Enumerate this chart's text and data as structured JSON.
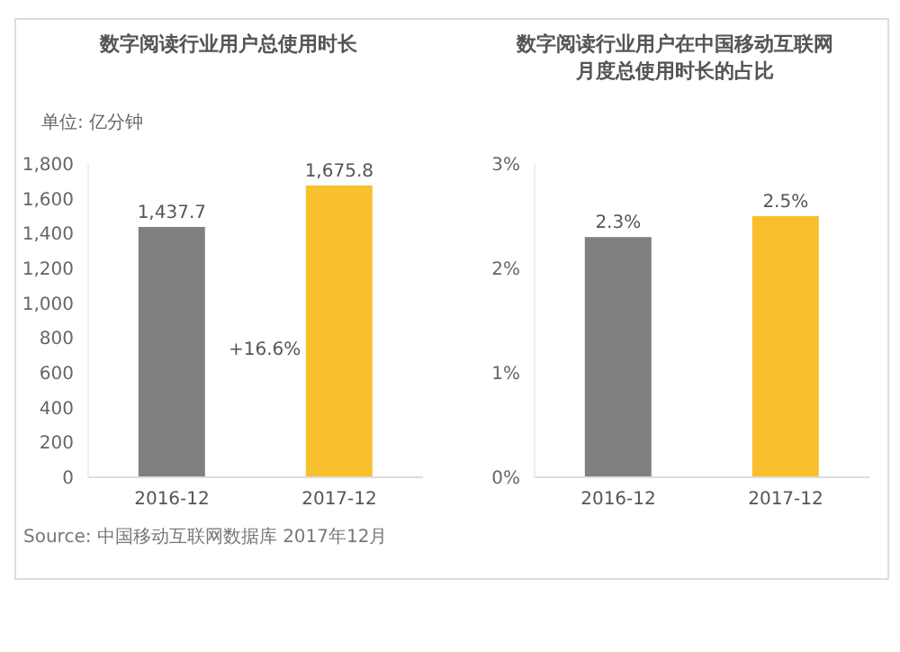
{
  "chart_data": [
    {
      "type": "bar",
      "title": "数字阅读行业用户总使用时长",
      "ylabel": "单位: 亿分钟",
      "categories": [
        "2016-12",
        "2017-12"
      ],
      "values": [
        1437.7,
        1675.8
      ],
      "colors": [
        "#808080",
        "#f8c02c"
      ],
      "value_labels": [
        "1,437.7",
        "1,675.8"
      ],
      "ylim": [
        0,
        1800
      ],
      "yticks": [
        {
          "value": 0,
          "label": "0"
        },
        {
          "value": 200,
          "label": "200"
        },
        {
          "value": 400,
          "label": "400"
        },
        {
          "value": 600,
          "label": "600"
        },
        {
          "value": 800,
          "label": "800"
        },
        {
          "value": 1000,
          "label": "1,000"
        },
        {
          "value": 1200,
          "label": "1,200"
        },
        {
          "value": 1400,
          "label": "1,400"
        },
        {
          "value": 1600,
          "label": "1,600"
        },
        {
          "value": 1800,
          "label": "1,800"
        }
      ],
      "annotations": [
        "+16.6%",
        "Source: 中国移动互联网数据库 2017年12月"
      ]
    },
    {
      "type": "bar",
      "title": "数字阅读行业用户在中国移动互联网月度总使用时长的占比",
      "categories": [
        "2016-12",
        "2017-12"
      ],
      "values": [
        2.3,
        2.5
      ],
      "colors": [
        "#808080",
        "#f8c02c"
      ],
      "value_labels": [
        "2.3%",
        "2.5%"
      ],
      "ylim": [
        0,
        3
      ],
      "yticks": [
        {
          "value": 0,
          "label": "0%"
        },
        {
          "value": 1,
          "label": "1%"
        },
        {
          "value": 2,
          "label": "2%"
        },
        {
          "value": 3,
          "label": "3%"
        }
      ]
    }
  ]
}
